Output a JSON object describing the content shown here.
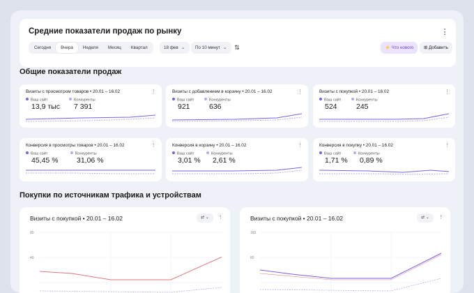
{
  "header": {
    "title": "Средние показатели продаж по рынку",
    "periods": [
      "Сегодня",
      "Вчера",
      "Неделя",
      "Месяц",
      "Квартал"
    ],
    "active_period": "Вчера",
    "date_label": "18 фев",
    "interval_label": "По 10 минут",
    "whats_new_label": "Что нового",
    "add_label": "Добавить"
  },
  "section_sales_title": "Общие показатели продаж",
  "legend": {
    "mine": "Ваш сайт",
    "comp": "Конкуренты"
  },
  "metrics": [
    {
      "title": "Визиты с просмотром товаров • 20.01 – 16.02",
      "mine": "13,9 тыс",
      "comp": "7 391"
    },
    {
      "title": "Визиты с добавлением в корзину • 20.01 – 16.02",
      "mine": "921",
      "comp": "636"
    },
    {
      "title": "Визиты с покупкой • 20.01 – 16.02",
      "mine": "524",
      "comp": "245"
    },
    {
      "title": "Конверсия в просмотры товаров • 20.01 – 16.02",
      "mine": "45,45 %",
      "comp": "31,06 %"
    },
    {
      "title": "Конверсия в корзину • 20.01 – 16.02",
      "mine": "3,01 %",
      "comp": "2,61 %"
    },
    {
      "title": "Конверсия в покупку • 20.01 – 16.02",
      "mine": "1,71 %",
      "comp": "0,89 %"
    }
  ],
  "section_traffic_title": "Покупки по источникам трафика и устройствам",
  "traffic_charts": [
    {
      "title": "Визиты с покупкой • 20.01 – 16.02",
      "y_ticks": [
        "80",
        "40"
      ]
    },
    {
      "title": "Визиты с покупкой • 20.01 – 16.02",
      "y_ticks": [
        "160",
        "80"
      ]
    }
  ],
  "colors": {
    "accent": "#6c3fdc",
    "mine_line": "#7b5fe6",
    "comp_line": "#b7abe8",
    "red_line": "#d9535f"
  },
  "icons": [
    "kebab-menu-icon",
    "chevron-down-icon",
    "filter-sliders-icon",
    "lightning-icon",
    "add-widget-icon"
  ]
}
